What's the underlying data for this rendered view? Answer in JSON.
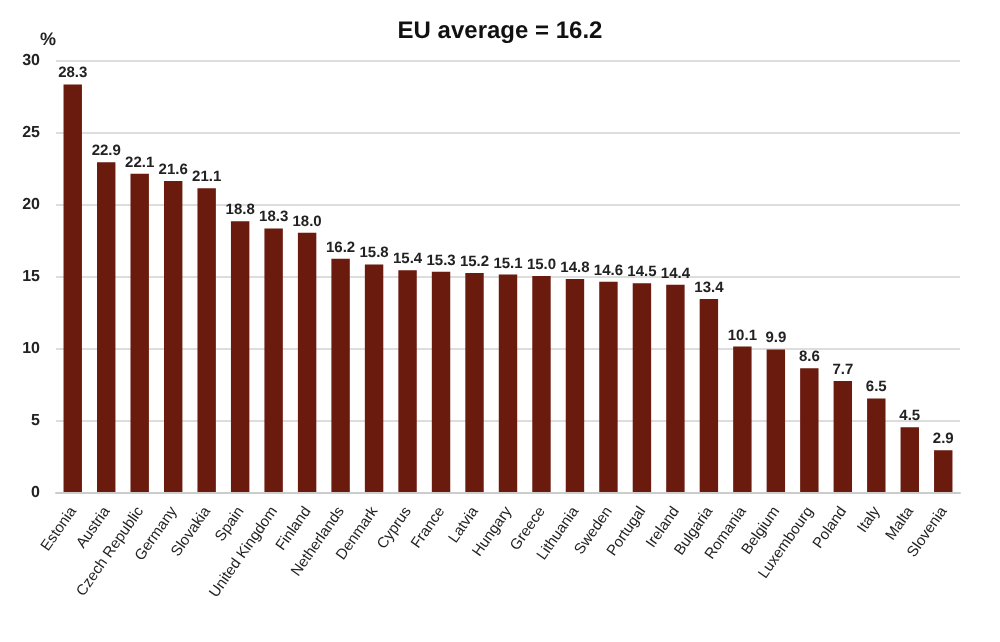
{
  "chart_data": {
    "type": "bar",
    "title": "EU average = 16.2",
    "ylabel": "%",
    "categories": [
      "Estonia",
      "Austria",
      "Czech Republic",
      "Germany",
      "Slovakia",
      "Spain",
      "United Kingdom",
      "Finland",
      "Netherlands",
      "Denmark",
      "Cyprus",
      "France",
      "Latvia",
      "Hungary",
      "Greece",
      "Lithuania",
      "Sweden",
      "Portugal",
      "Ireland",
      "Bulgaria",
      "Romania",
      "Belgium",
      "Luxembourg",
      "Poland",
      "Italy",
      "Malta",
      "Slovenia"
    ],
    "values": [
      28.3,
      22.9,
      22.1,
      21.6,
      21.1,
      18.8,
      18.3,
      18.0,
      16.2,
      15.8,
      15.4,
      15.3,
      15.2,
      15.1,
      15.0,
      14.8,
      14.6,
      14.5,
      14.4,
      13.4,
      10.1,
      9.9,
      8.6,
      7.7,
      6.5,
      4.5,
      2.9
    ],
    "value_labels": [
      "28.3",
      "22.9",
      "22.1",
      "21.6",
      "21.1",
      "18.8",
      "18.3",
      "18.0",
      "16.2",
      "15.8",
      "15.4",
      "15.3",
      "15.2",
      "15.1",
      "15.0",
      "14.8",
      "14.6",
      "14.5",
      "14.4",
      "13.4",
      "10.1",
      "9.9",
      "8.6",
      "7.7",
      "6.5",
      "4.5",
      "2.9"
    ],
    "color": "#6b1a0e",
    "ylim": [
      0,
      30
    ],
    "yticks": [
      0,
      5,
      10,
      15,
      20,
      25,
      30
    ],
    "grid": "y"
  }
}
